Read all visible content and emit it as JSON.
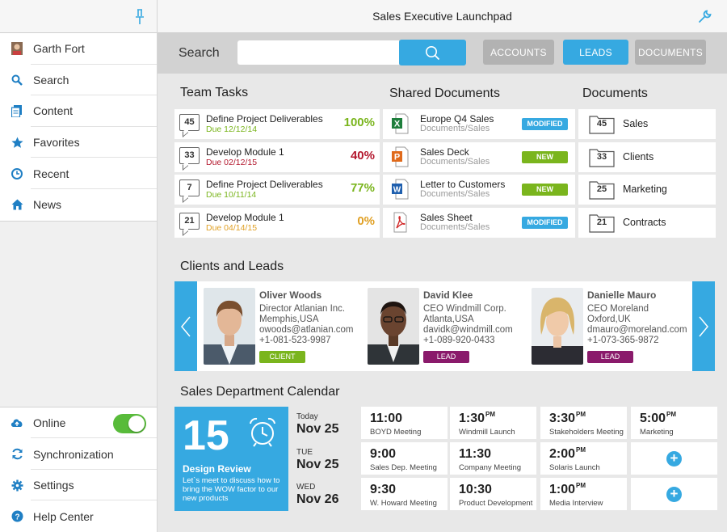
{
  "header": {
    "title": "Sales Executive Launchpad"
  },
  "sidebar": {
    "items": [
      {
        "label": "Garth Fort",
        "icon": "user-avatar-icon"
      },
      {
        "label": "Search",
        "icon": "search-icon"
      },
      {
        "label": "Content",
        "icon": "content-icon"
      },
      {
        "label": "Favorites",
        "icon": "star-icon"
      },
      {
        "label": "Recent",
        "icon": "clock-icon"
      },
      {
        "label": "News",
        "icon": "home-icon"
      }
    ],
    "bottom": [
      {
        "label": "Online",
        "icon": "cloud-upload-icon",
        "toggle_on": true
      },
      {
        "label": "Synchronization",
        "icon": "sync-icon"
      },
      {
        "label": "Settings",
        "icon": "gear-icon"
      },
      {
        "label": "Help Center",
        "icon": "help-icon"
      }
    ]
  },
  "search": {
    "label": "Search",
    "value": "",
    "placeholder": ""
  },
  "filters": [
    {
      "label": "ACCOUNTS",
      "active": false
    },
    {
      "label": "LEADS",
      "active": true
    },
    {
      "label": "DOCUMENTS",
      "active": false
    }
  ],
  "sections": {
    "team_tasks": "Team Tasks",
    "shared_documents": "Shared Documents",
    "documents": "Documents",
    "clients_leads": "Clients and Leads",
    "calendar": "Sales Department Calendar"
  },
  "tasks": [
    {
      "count": "45",
      "name": "Define Project Deliverables",
      "due": "Due 12/12/14",
      "pct": "100%",
      "color": "#7ab51d"
    },
    {
      "count": "33",
      "name": "Develop Module 1",
      "due": "Due 02/12/15",
      "pct": "40%",
      "color": "#b3172d"
    },
    {
      "count": "7",
      "name": "Define Project Deliverables",
      "due": "Due 10/11/14",
      "pct": "77%",
      "color": "#7ab51d"
    },
    {
      "count": "21",
      "name": "Develop Module 1",
      "due": "Due 04/14/15",
      "pct": "0%",
      "color": "#e0a024"
    }
  ],
  "shared_docs": [
    {
      "name": "Europe Q4 Sales",
      "path": "Documents/Sales",
      "badge": "MODIFIED",
      "type": "excel",
      "letter": "X"
    },
    {
      "name": "Sales Deck",
      "path": "Documents/Sales",
      "badge": "NEW",
      "type": "powerpoint",
      "letter": "P"
    },
    {
      "name": "Letter to Customers",
      "path": "Documents/Sales",
      "badge": "NEW",
      "type": "word",
      "letter": "W"
    },
    {
      "name": "Sales Sheet",
      "path": "Documents/Sales",
      "badge": "MODIFIED",
      "type": "pdf",
      "letter": ""
    }
  ],
  "folders": [
    {
      "count": "45",
      "name": "Sales"
    },
    {
      "count": "33",
      "name": "Clients"
    },
    {
      "count": "25",
      "name": "Marketing"
    },
    {
      "count": "21",
      "name": "Contracts"
    }
  ],
  "contacts": [
    {
      "name": "Oliver Woods",
      "title": "Director Atlanian Inc.",
      "location": "Memphis,USA",
      "email": "owoods@atlanian.com",
      "phone": "+1-081-523-9987",
      "tag": "CLIENT",
      "tag_color": "#7ab51d"
    },
    {
      "name": "David Klee",
      "title": "CEO Windmill Corp.",
      "location": "Atlanta,USA",
      "email": "davidk@windmill.com",
      "phone": "+1-089-920-0433",
      "tag": "LEAD",
      "tag_color": "#8a1a6b"
    },
    {
      "name": "Danielle Mauro",
      "title": "CEO Moreland",
      "location": "Oxford,UK",
      "email": "dmauro@moreland.com",
      "phone": "+1-073-365-9872",
      "tag": "LEAD",
      "tag_color": "#8a1a6b"
    }
  ],
  "calendar": {
    "hero": {
      "day": "15",
      "event": "Design Review",
      "desc": "Let`s meet to discuss how  to bring the WOW factor to our new products"
    },
    "days": [
      {
        "label": "Today",
        "date": "Nov 25"
      },
      {
        "label": "TUE",
        "date": "Nov 25"
      },
      {
        "label": "WED",
        "date": "Nov 26"
      }
    ],
    "rows": [
      [
        {
          "time": "11:00",
          "ampm": "",
          "event": "BOYD Meeting"
        },
        {
          "time": "1:30",
          "ampm": "PM",
          "event": "Windmill Launch"
        },
        {
          "time": "3:30",
          "ampm": "PM",
          "event": "Stakeholders Meeting"
        },
        {
          "time": "5:00",
          "ampm": "PM",
          "event": "Marketing"
        }
      ],
      [
        {
          "time": "9:00",
          "ampm": "",
          "event": "Sales Dep. Meeting"
        },
        {
          "time": "11:30",
          "ampm": "",
          "event": "Company Meeting"
        },
        {
          "time": "2:00",
          "ampm": "PM",
          "event": "Solaris Launch"
        },
        {
          "add": true
        }
      ],
      [
        {
          "time": "9:30",
          "ampm": "",
          "event": "W. Howard Meeting"
        },
        {
          "time": "10:30",
          "ampm": "",
          "event": "Product Development"
        },
        {
          "time": "1:00",
          "ampm": "PM",
          "event": "Media Interview"
        },
        {
          "add": true
        }
      ]
    ]
  },
  "colors": {
    "accent": "#36a9e1",
    "green": "#7ab51d",
    "plum": "#8a1a6b",
    "red": "#b3172d",
    "orange": "#e0a024"
  }
}
